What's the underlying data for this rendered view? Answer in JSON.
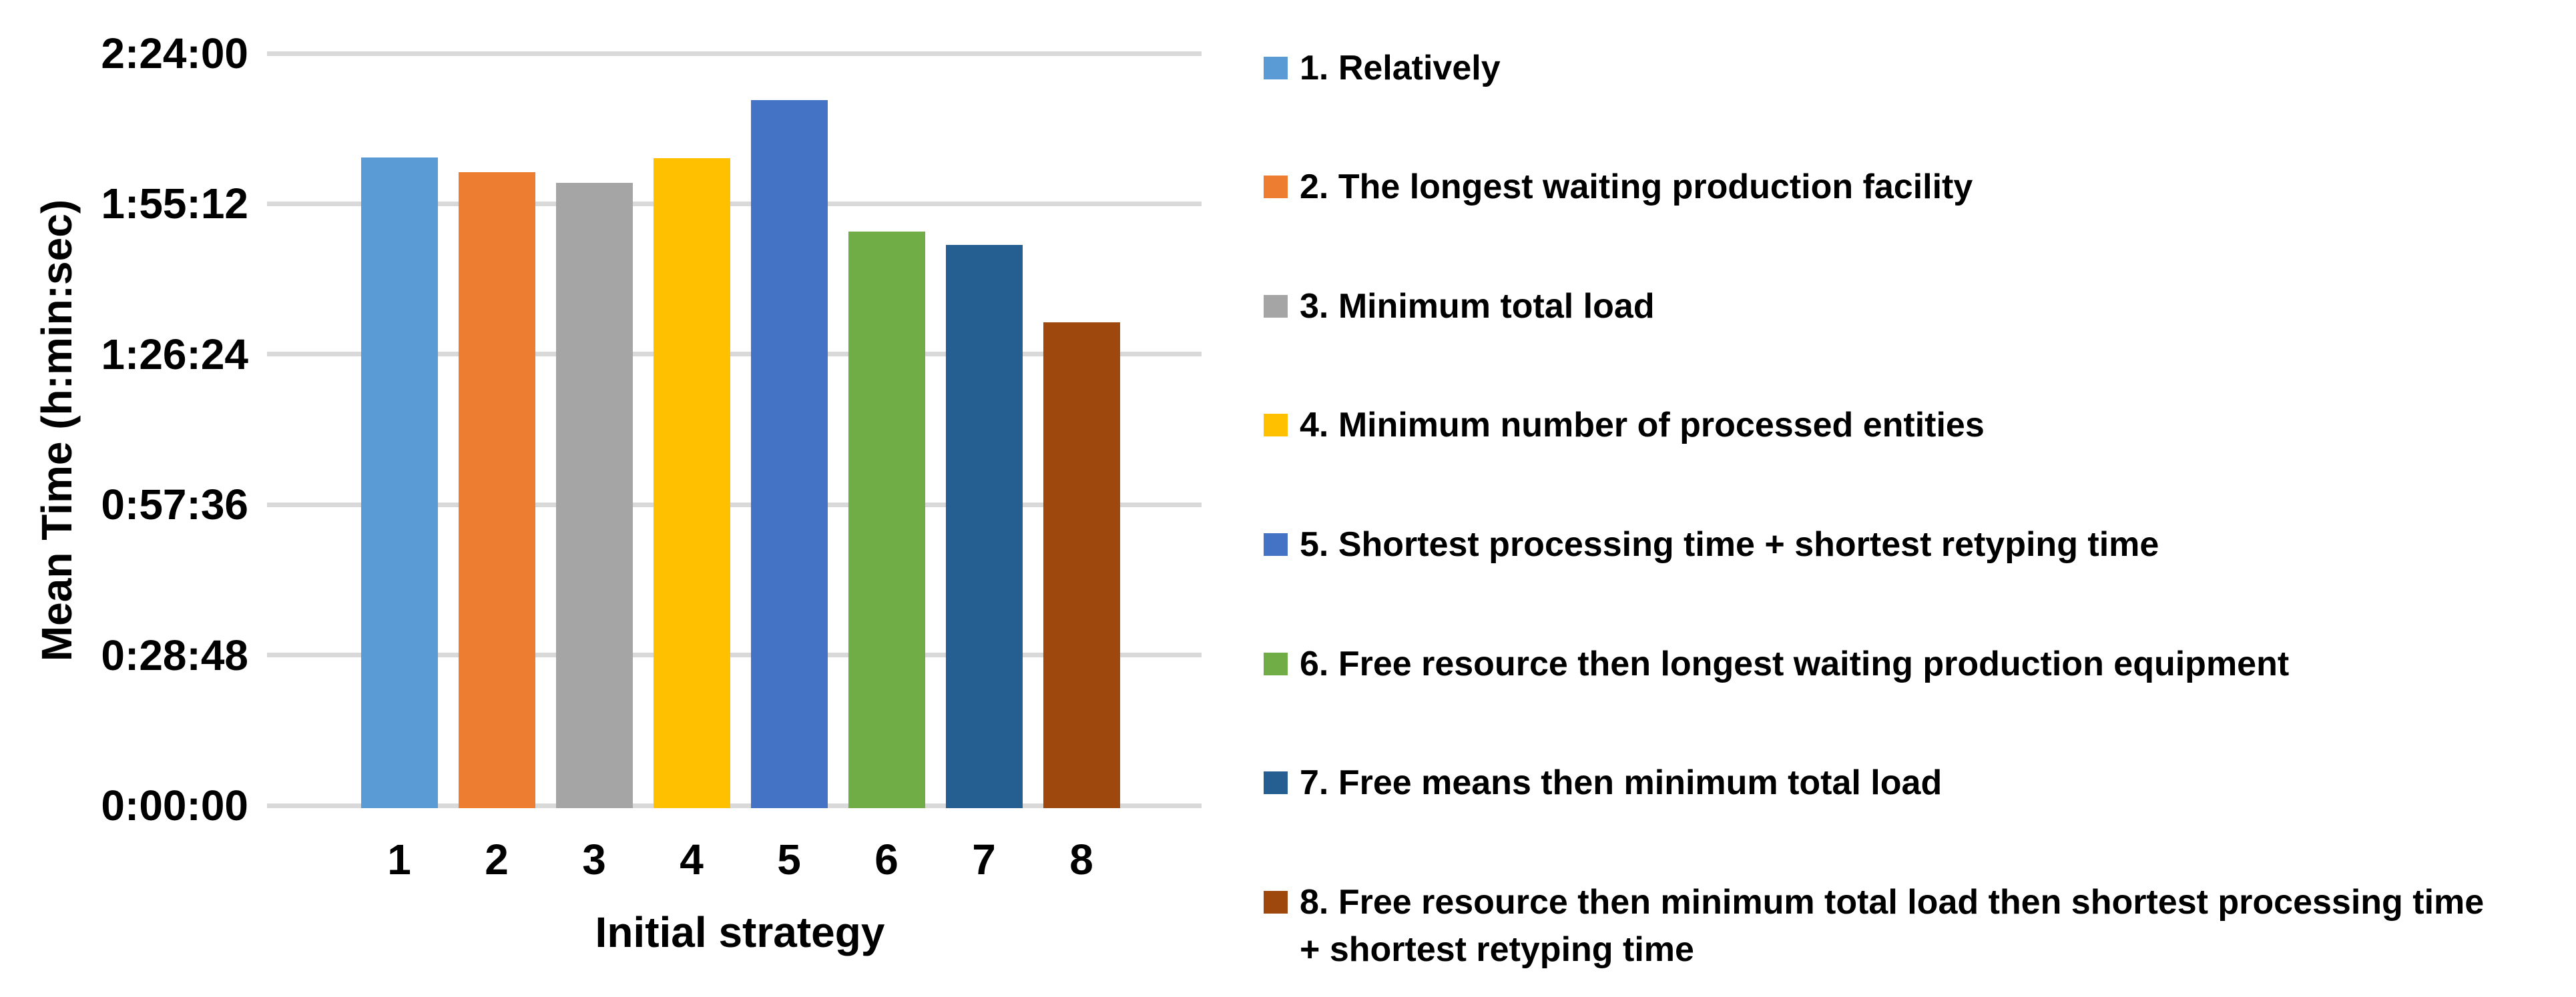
{
  "chart": {
    "y_axis": {
      "title": "Mean Time (h:min:sec)",
      "ticks": [
        "2:24:00",
        "1:55:12",
        "1:26:24",
        "0:57:36",
        "0:28:48",
        "0:00:00"
      ]
    },
    "x_axis": {
      "title": "Initial strategy",
      "categories": [
        "1",
        "2",
        "3",
        "4",
        "5",
        "6",
        "7",
        "8"
      ]
    },
    "legend": [
      {
        "label": "1. Relatively",
        "color": "#5B9BD5"
      },
      {
        "label": "2. The longest waiting production facility",
        "color": "#ED7D31"
      },
      {
        "label": "3. Minimum total load",
        "color": "#A5A5A5"
      },
      {
        "label": "4. Minimum number of processed entities",
        "color": "#FFC000"
      },
      {
        "label": "5. Shortest processing time + shortest retyping time",
        "color": "#4472C4"
      },
      {
        "label": "6. Free resource then longest waiting production equipment",
        "color": "#70AD47"
      },
      {
        "label": "7. Free means then minimum total load",
        "color": "#255E91"
      },
      {
        "label": "8. Free resource then minimum total load then shortest processing time + shortest retyping time",
        "color": "#9E480E"
      }
    ],
    "gridline_color": "#D9D9D9"
  },
  "chart_data": {
    "type": "bar",
    "title": "",
    "xlabel": "Initial strategy",
    "ylabel": "Mean Time (h:min:sec)",
    "categories": [
      "1",
      "2",
      "3",
      "4",
      "5",
      "6",
      "7",
      "8"
    ],
    "values": [
      "2:04:05",
      "2:01:15",
      "1:59:15",
      "2:03:55",
      "2:15:05",
      "1:49:55",
      "1:47:20",
      "1:32:30"
    ],
    "value_seconds": [
      7445,
      7275,
      7155,
      7435,
      8105,
      6595,
      6440,
      5550
    ],
    "series_labels": [
      "1. Relatively",
      "2. The longest waiting production facility",
      "3. Minimum total load",
      "4. Minimum number of processed entities",
      "5. Shortest processing time + shortest retyping time",
      "6. Free resource then longest waiting production equipment",
      "7. Free means then minimum total load",
      "8. Free resource then minimum total load then shortest processing time + shortest retyping time"
    ],
    "series_colors": [
      "#5B9BD5",
      "#ED7D31",
      "#A5A5A5",
      "#FFC000",
      "#4472C4",
      "#70AD47",
      "#255E91",
      "#9E480E"
    ],
    "ylim": [
      "0:00:00",
      "2:24:00"
    ],
    "ylim_seconds": [
      0,
      8640
    ],
    "ytick_interval_seconds": 1728,
    "grid": true,
    "legend_position": "right"
  }
}
